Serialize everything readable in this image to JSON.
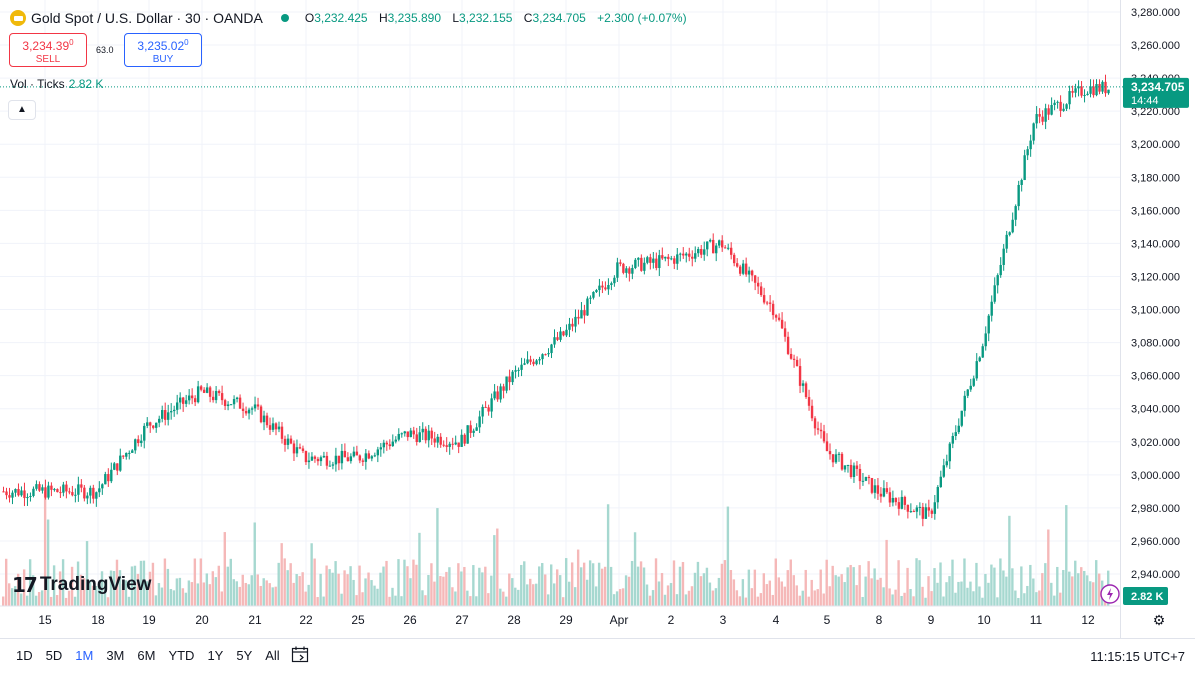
{
  "header": {
    "title": "Gold Spot / U.S. Dollar · 30 · OANDA",
    "open_label": "O",
    "open": "3,232.425",
    "high_label": "H",
    "high": "3,235.890",
    "low_label": "L",
    "low": "3,232.155",
    "close_label": "C",
    "close": "3,234.705",
    "change": "+2.300 (+0.07%)"
  },
  "trade": {
    "sell_price": "3,234.39",
    "sell_sup": "0",
    "sell_label": "SELL",
    "buy_price": "3,235.02",
    "buy_sup": "0",
    "buy_label": "BUY",
    "spread": "63.0"
  },
  "volume_indicator": {
    "label": "Vol · Ticks",
    "value": "2.82 K"
  },
  "collapse_icon": "chevron-up-icon",
  "branding": {
    "name": "TradingView"
  },
  "price_label": {
    "price": "3,234.705",
    "countdown": "14:44"
  },
  "volume_label": "2.82 K",
  "bottom_bar": {
    "ranges": [
      "1D",
      "5D",
      "1M",
      "3M",
      "6M",
      "YTD",
      "1Y",
      "5Y",
      "All"
    ],
    "active_range": "1M",
    "clock": "11:15:15 UTC+7"
  },
  "colors": {
    "up": "#089981",
    "down": "#f23645",
    "vol_up": "#a6d8d0",
    "vol_down": "#f5b8b8",
    "accent": "#2962ff"
  },
  "chart_data": {
    "type": "candlestick",
    "y_axis_ticks": [
      "3,280.000",
      "3,260.000",
      "3,240.000",
      "3,220.000",
      "3,200.000",
      "3,180.000",
      "3,160.000",
      "3,140.000",
      "3,120.000",
      "3,100.000",
      "3,080.000",
      "3,060.000",
      "3,040.000",
      "3,020.000",
      "3,000.000",
      "2,980.000",
      "2,960.000",
      "2,940.000"
    ],
    "ylim": [
      2930,
      3284
    ],
    "x_axis_ticks": [
      "15",
      "18",
      "19",
      "20",
      "21",
      "22",
      "25",
      "26",
      "27",
      "28",
      "29",
      "Apr",
      "2",
      "3",
      "4",
      "5",
      "8",
      "9",
      "10",
      "11",
      "12"
    ],
    "last_price": 3234.705,
    "grid": true,
    "series": [
      {
        "name": "Gold Spot / U.S. Dollar",
        "daily_path": [
          {
            "x": "15",
            "y": 2990
          },
          {
            "x": "18",
            "y": 2990
          },
          {
            "x": "19",
            "y": 3030
          },
          {
            "x": "20",
            "y": 3050
          },
          {
            "x": "21",
            "y": 3040
          },
          {
            "x": "22",
            "y": 3010
          },
          {
            "x": "25",
            "y": 3010
          },
          {
            "x": "26",
            "y": 3025
          },
          {
            "x": "27",
            "y": 3020
          },
          {
            "x": "28",
            "y": 3060
          },
          {
            "x": "29",
            "y": 3085
          },
          {
            "x": "Apr",
            "y": 3125
          },
          {
            "x": "2",
            "y": 3130
          },
          {
            "x": "3",
            "y": 3140
          },
          {
            "x": "4",
            "y": 3100
          },
          {
            "x": "5",
            "y": 3015
          },
          {
            "x": "8",
            "y": 2990
          },
          {
            "x": "9",
            "y": 2975
          },
          {
            "x": "10",
            "y": 3080
          },
          {
            "x": "11",
            "y": 3215
          },
          {
            "x": "12",
            "y": 3234
          }
        ]
      }
    ]
  }
}
